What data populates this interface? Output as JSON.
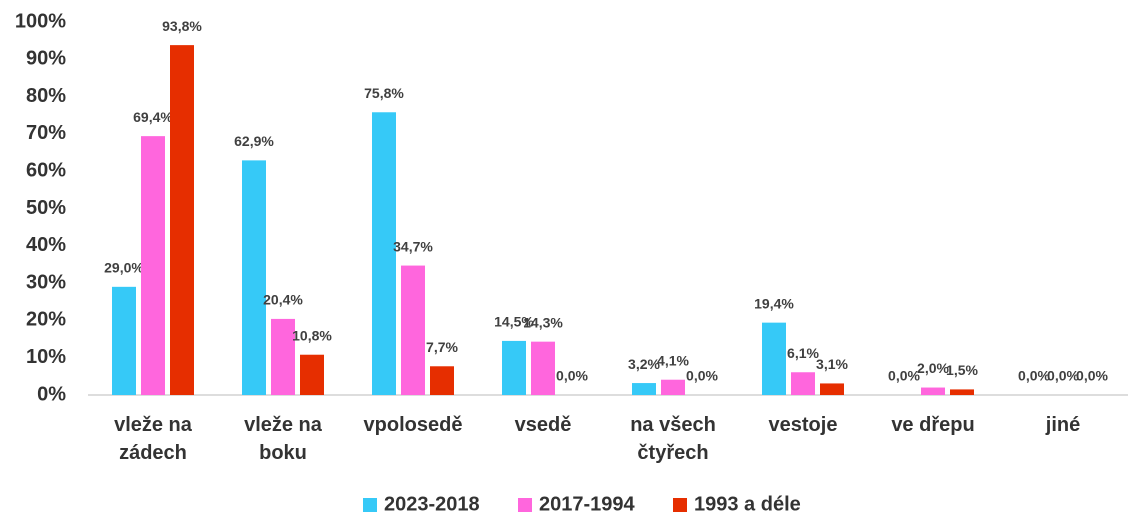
{
  "chart_data": {
    "type": "bar",
    "categories": [
      "vleže na zádech",
      "vleže na boku",
      "vpolosedě",
      "vsedě",
      "na všech čtyřech",
      "vestoje",
      "ve dřepu",
      "jiné"
    ],
    "series": [
      {
        "name": "2023-2018",
        "color": "#36c9f7",
        "values": [
          29.0,
          62.9,
          75.8,
          14.5,
          3.2,
          19.4,
          0.0,
          0.0
        ],
        "value_labels": [
          "29,0%",
          "62,9%",
          "75,8%",
          "14,5%",
          "3,2%",
          "19,4%",
          "0,0%",
          "0,0%"
        ]
      },
      {
        "name": "2017-1994",
        "color": "#ff66dd",
        "values": [
          69.4,
          20.4,
          34.7,
          14.3,
          4.1,
          6.1,
          2.0,
          0.0
        ],
        "value_labels": [
          "69,4%",
          "20,4%",
          "34,7%",
          "14,3%",
          "4,1%",
          "6,1%",
          "2,0%",
          "0,0%"
        ]
      },
      {
        "name": "1993 a déle",
        "color": "#e62e00",
        "values": [
          93.8,
          10.8,
          7.7,
          0.0,
          0.0,
          3.1,
          1.5,
          0.0
        ],
        "value_labels": [
          "93,8%",
          "10,8%",
          "7,7%",
          "0,0%",
          "0,0%",
          "3,1%",
          "1,5%",
          "0,0%"
        ]
      }
    ],
    "ylim": [
      0,
      100
    ],
    "yticks": [
      {
        "value": 0,
        "label": "0%"
      },
      {
        "value": 10,
        "label": "10%"
      },
      {
        "value": 20,
        "label": "20%"
      },
      {
        "value": 30,
        "label": "30%"
      },
      {
        "value": 40,
        "label": "40%"
      },
      {
        "value": 50,
        "label": "50%"
      },
      {
        "value": 60,
        "label": "60%"
      },
      {
        "value": 70,
        "label": "70%"
      },
      {
        "value": 80,
        "label": "80%"
      },
      {
        "value": 90,
        "label": "90%"
      },
      {
        "value": 100,
        "label": "100%"
      }
    ],
    "grid": false,
    "legend": "bottom"
  }
}
